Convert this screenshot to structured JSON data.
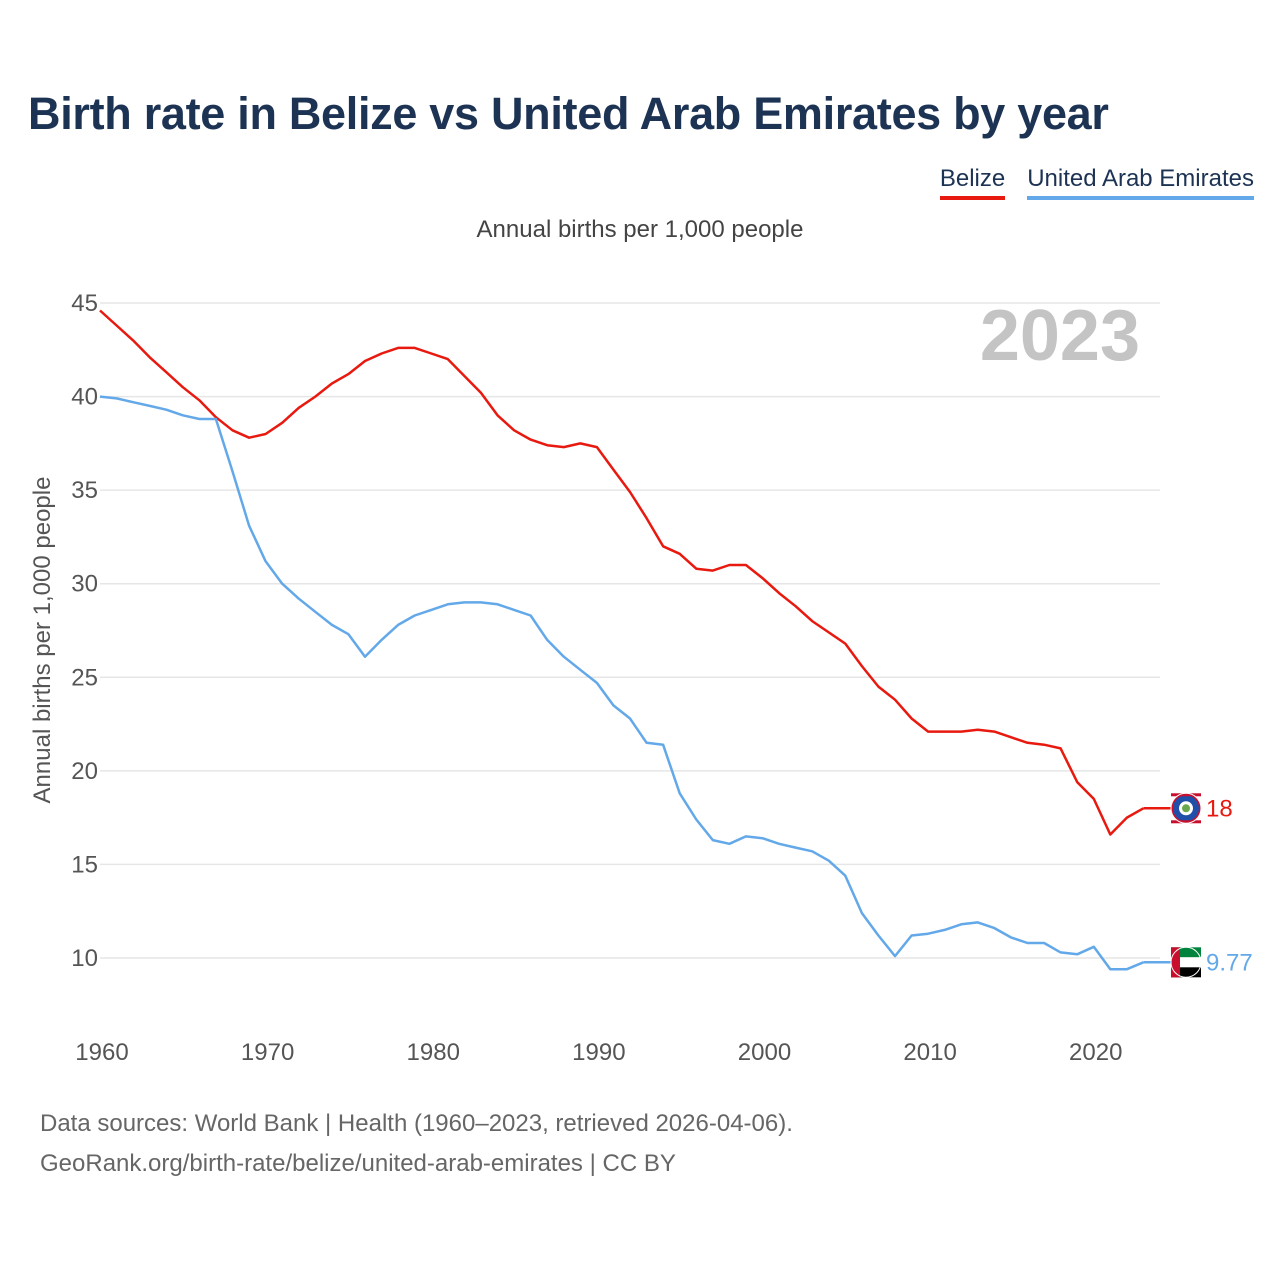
{
  "title": "Birth rate in Belize vs United Arab Emirates by year",
  "subtitle": "Annual births per 1,000 people",
  "year_overlay": "2023",
  "colors": {
    "belize": "#e8190f",
    "uae": "#63a8e8",
    "title": "#1d3354",
    "grid": "#e6e6e6"
  },
  "legend": [
    {
      "label": "Belize",
      "color": "#e8190f"
    },
    {
      "label": "United Arab Emirates",
      "color": "#63a8e8"
    }
  ],
  "end_labels": {
    "belize": "18",
    "uae": "9.77"
  },
  "flags": {
    "belize": "belize-flag-icon",
    "uae": "uae-flag-icon"
  },
  "footer": {
    "line1": "Data sources: World Bank | Health (1960–2023, retrieved 2026-04-06).",
    "line2": "GeoRank.org/birth-rate/belize/united-arab-emirates | CC BY"
  },
  "chart_data": {
    "type": "line",
    "title": "Birth rate in Belize vs United Arab Emirates by year",
    "ylabel": "Annual births per 1,000 people",
    "xlabel": "",
    "xlim": [
      1960,
      2023
    ],
    "ylim": [
      10,
      45
    ],
    "xticks": [
      1960,
      1970,
      1980,
      1990,
      2000,
      2010,
      2020
    ],
    "yticks": [
      10,
      15,
      20,
      25,
      30,
      35,
      40,
      45
    ],
    "x": [
      1960,
      1961,
      1962,
      1963,
      1964,
      1965,
      1966,
      1967,
      1968,
      1969,
      1970,
      1971,
      1972,
      1973,
      1974,
      1975,
      1976,
      1977,
      1978,
      1979,
      1980,
      1981,
      1982,
      1983,
      1984,
      1985,
      1986,
      1987,
      1988,
      1989,
      1990,
      1991,
      1992,
      1993,
      1994,
      1995,
      1996,
      1997,
      1998,
      1999,
      2000,
      2001,
      2002,
      2003,
      2004,
      2005,
      2006,
      2007,
      2008,
      2009,
      2010,
      2011,
      2012,
      2013,
      2014,
      2015,
      2016,
      2017,
      2018,
      2019,
      2020,
      2021,
      2022,
      2023
    ],
    "series": [
      {
        "name": "Belize",
        "values": [
          44.6,
          43.8,
          43.0,
          42.1,
          41.3,
          40.5,
          39.8,
          38.9,
          38.2,
          37.8,
          38.0,
          38.6,
          39.4,
          40.0,
          40.7,
          41.2,
          41.9,
          42.3,
          42.6,
          42.6,
          42.3,
          42.0,
          41.1,
          40.2,
          39.0,
          38.2,
          37.7,
          37.4,
          37.3,
          37.5,
          37.3,
          36.1,
          34.9,
          33.5,
          32.0,
          31.6,
          30.8,
          30.7,
          31.0,
          31.0,
          30.3,
          29.5,
          28.8,
          28.0,
          27.4,
          26.8,
          25.6,
          24.5,
          23.8,
          22.8,
          22.1,
          22.1,
          22.1,
          22.2,
          22.1,
          21.8,
          21.5,
          21.4,
          21.2,
          19.4,
          18.5,
          16.6,
          17.5,
          18.0
        ]
      },
      {
        "name": "United Arab Emirates",
        "values": [
          40.0,
          39.9,
          39.7,
          39.5,
          39.3,
          39.0,
          38.8,
          38.8,
          36.0,
          33.1,
          31.2,
          30.0,
          29.2,
          28.5,
          27.8,
          27.3,
          26.1,
          27.0,
          27.8,
          28.3,
          28.6,
          28.9,
          29.0,
          29.0,
          28.9,
          28.6,
          28.3,
          27.0,
          26.1,
          25.4,
          24.7,
          23.5,
          22.8,
          21.5,
          21.4,
          18.8,
          17.4,
          16.3,
          16.1,
          16.5,
          16.4,
          16.1,
          15.9,
          15.7,
          15.2,
          14.4,
          12.4,
          11.2,
          10.1,
          11.2,
          11.3,
          11.5,
          11.8,
          11.9,
          11.6,
          11.1,
          10.8,
          10.8,
          10.3,
          10.2,
          10.6,
          9.4,
          9.4,
          9.77
        ]
      }
    ]
  }
}
